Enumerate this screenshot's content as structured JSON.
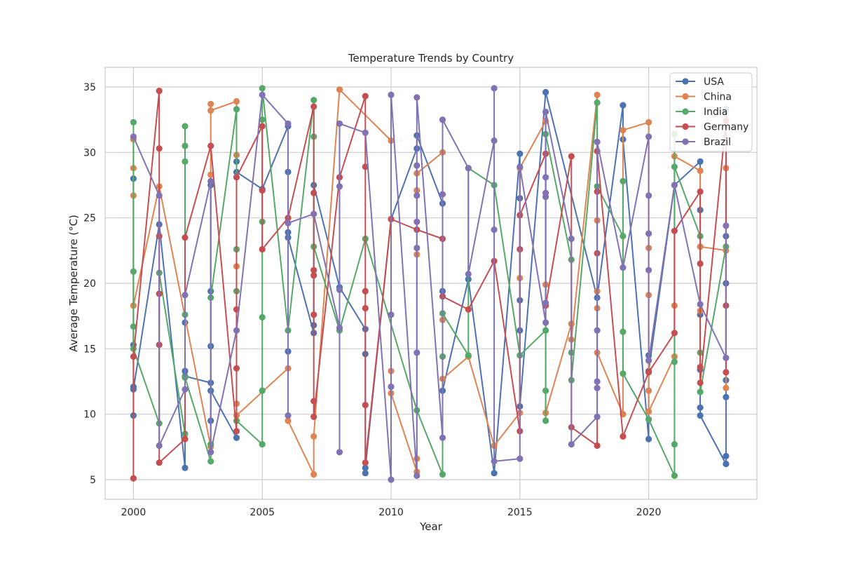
{
  "chart_data": {
    "type": "line",
    "title": "Temperature Trends by Country",
    "xlabel": "Year",
    "ylabel": "Average Temperature (°C)",
    "xlim": [
      1998.9,
      2024.2
    ],
    "ylim": [
      3.5,
      36.5
    ],
    "xticks": [
      2000,
      2005,
      2010,
      2015,
      2020
    ],
    "yticks": [
      5,
      10,
      15,
      20,
      25,
      30,
      35
    ],
    "grid": true,
    "legend_position": "top-right",
    "series": [
      {
        "name": "USA",
        "color": "#4c72b0",
        "points": [
          [
            2000,
            28.0
          ],
          [
            2000,
            15.3
          ],
          [
            2000,
            9.9
          ],
          [
            2000,
            12.1
          ],
          [
            2000,
            11.9
          ],
          [
            2001,
            24.5
          ],
          [
            2002,
            5.9
          ],
          [
            2002,
            13.3
          ],
          [
            2002,
            17.0
          ],
          [
            2002,
            12.9
          ],
          [
            2003,
            12.4
          ],
          [
            2003,
            15.2
          ],
          [
            2003,
            19.4
          ],
          [
            2003,
            27.5
          ],
          [
            2003,
            9.5
          ],
          [
            2003,
            11.8
          ],
          [
            2004,
            8.2
          ],
          [
            2004,
            29.3
          ],
          [
            2004,
            28.5
          ],
          [
            2005,
            27.2
          ],
          [
            2006,
            32.0
          ],
          [
            2006,
            23.9
          ],
          [
            2006,
            28.5
          ],
          [
            2006,
            14.8
          ],
          [
            2006,
            23.5
          ],
          [
            2007,
            16.2
          ],
          [
            2007,
            16.8
          ],
          [
            2007,
            27.5
          ],
          [
            2008,
            19.7
          ],
          [
            2009,
            16.5
          ],
          [
            2009,
            14.6
          ],
          [
            2009,
            5.5
          ],
          [
            2009,
            5.9
          ],
          [
            2010,
            24.9
          ],
          [
            2011,
            30.3
          ],
          [
            2011,
            31.3
          ],
          [
            2012,
            26.1
          ],
          [
            2012,
            19.4
          ],
          [
            2012,
            11.8
          ],
          [
            2013,
            20.3
          ],
          [
            2014,
            5.5
          ],
          [
            2015,
            29.9
          ],
          [
            2015,
            26.5
          ],
          [
            2015,
            18.7
          ],
          [
            2015,
            16.4
          ],
          [
            2015,
            10.6
          ],
          [
            2016,
            34.6
          ],
          [
            2018,
            18.9
          ],
          [
            2019,
            33.6
          ],
          [
            2019,
            31.0
          ],
          [
            2020,
            8.1
          ],
          [
            2020,
            14.5
          ],
          [
            2020,
            13.3
          ],
          [
            2021,
            27.5
          ],
          [
            2022,
            29.3
          ],
          [
            2022,
            25.6
          ],
          [
            2022,
            17.6
          ],
          [
            2022,
            13.4
          ],
          [
            2022,
            10.5
          ],
          [
            2022,
            9.9
          ],
          [
            2023,
            6.2
          ],
          [
            2023,
            6.8
          ],
          [
            2023,
            11.3
          ],
          [
            2023,
            12.6
          ],
          [
            2023,
            20.0
          ],
          [
            2023,
            23.6
          ],
          [
            2023,
            33.3
          ]
        ]
      },
      {
        "name": "China",
        "color": "#dd8452",
        "points": [
          [
            2000,
            31.0
          ],
          [
            2000,
            28.8
          ],
          [
            2000,
            26.7
          ],
          [
            2000,
            18.3
          ],
          [
            2001,
            27.4
          ],
          [
            2003,
            7.5
          ],
          [
            2003,
            28.3
          ],
          [
            2003,
            33.7
          ],
          [
            2003,
            33.2
          ],
          [
            2004,
            33.9
          ],
          [
            2004,
            29.8
          ],
          [
            2004,
            21.3
          ],
          [
            2004,
            10.8
          ],
          [
            2004,
            9.9
          ],
          [
            2006,
            13.5
          ],
          [
            2006,
            9.5
          ],
          [
            2007,
            5.4
          ],
          [
            2007,
            8.3
          ],
          [
            2008,
            34.8
          ],
          [
            2010,
            30.9
          ],
          [
            2010,
            13.3
          ],
          [
            2010,
            11.6
          ],
          [
            2011,
            5.6
          ],
          [
            2011,
            6.6
          ],
          [
            2011,
            22.2
          ],
          [
            2011,
            27.1
          ],
          [
            2011,
            28.4
          ],
          [
            2012,
            30.0
          ],
          [
            2012,
            17.2
          ],
          [
            2012,
            12.7
          ],
          [
            2013,
            14.4
          ],
          [
            2014,
            7.6
          ],
          [
            2015,
            10.1
          ],
          [
            2015,
            20.4
          ],
          [
            2015,
            28.8
          ],
          [
            2016,
            32.4
          ],
          [
            2016,
            19.9
          ],
          [
            2016,
            10.1
          ],
          [
            2017,
            16.9
          ],
          [
            2017,
            16.9
          ],
          [
            2017,
            15.7
          ],
          [
            2018,
            34.4
          ],
          [
            2018,
            24.8
          ],
          [
            2018,
            19.4
          ],
          [
            2018,
            18.1
          ],
          [
            2018,
            14.7
          ],
          [
            2019,
            10.0
          ],
          [
            2019,
            31.7
          ],
          [
            2020,
            32.3
          ],
          [
            2020,
            22.7
          ],
          [
            2020,
            19.1
          ],
          [
            2020,
            11.8
          ],
          [
            2020,
            10.2
          ],
          [
            2021,
            14.4
          ],
          [
            2021,
            18.3
          ],
          [
            2021,
            29.7
          ],
          [
            2022,
            28.6
          ],
          [
            2022,
            17.9
          ],
          [
            2022,
            22.8
          ],
          [
            2023,
            22.5
          ],
          [
            2023,
            28.8
          ],
          [
            2023,
            12.0
          ]
        ]
      },
      {
        "name": "India",
        "color": "#55a868",
        "points": [
          [
            2000,
            32.3
          ],
          [
            2000,
            20.9
          ],
          [
            2000,
            16.7
          ],
          [
            2000,
            15.0
          ],
          [
            2001,
            9.3
          ],
          [
            2001,
            20.8
          ],
          [
            2002,
            8.5
          ],
          [
            2002,
            32.0
          ],
          [
            2002,
            30.5
          ],
          [
            2002,
            29.3
          ],
          [
            2002,
            17.6
          ],
          [
            2002,
            12.8
          ],
          [
            2003,
            6.4
          ],
          [
            2003,
            7.7
          ],
          [
            2003,
            18.9
          ],
          [
            2004,
            33.3
          ],
          [
            2004,
            22.6
          ],
          [
            2004,
            19.4
          ],
          [
            2004,
            9.5
          ],
          [
            2005,
            7.7
          ],
          [
            2005,
            11.8
          ],
          [
            2005,
            17.4
          ],
          [
            2005,
            24.7
          ],
          [
            2005,
            32.5
          ],
          [
            2005,
            34.9
          ],
          [
            2006,
            16.4
          ],
          [
            2007,
            34.0
          ],
          [
            2007,
            31.2
          ],
          [
            2007,
            22.8
          ],
          [
            2008,
            16.4
          ],
          [
            2009,
            23.4
          ],
          [
            2011,
            10.3
          ],
          [
            2012,
            5.4
          ],
          [
            2012,
            14.4
          ],
          [
            2012,
            17.7
          ],
          [
            2013,
            14.5
          ],
          [
            2013,
            28.8
          ],
          [
            2014,
            27.5
          ],
          [
            2015,
            14.5
          ],
          [
            2016,
            16.4
          ],
          [
            2016,
            9.5
          ],
          [
            2016,
            11.8
          ],
          [
            2016,
            31.4
          ],
          [
            2017,
            21.8
          ],
          [
            2017,
            14.7
          ],
          [
            2017,
            12.6
          ],
          [
            2018,
            33.8
          ],
          [
            2018,
            27.4
          ],
          [
            2019,
            23.6
          ],
          [
            2019,
            27.8
          ],
          [
            2019,
            16.3
          ],
          [
            2019,
            13.1
          ],
          [
            2020,
            9.6
          ],
          [
            2021,
            5.3
          ],
          [
            2021,
            7.7
          ],
          [
            2021,
            14.0
          ],
          [
            2021,
            31.4
          ],
          [
            2021,
            28.9
          ],
          [
            2022,
            23.6
          ],
          [
            2022,
            14.7
          ],
          [
            2022,
            11.7
          ],
          [
            2023,
            22.8
          ]
        ]
      },
      {
        "name": "Germany",
        "color": "#c44e52",
        "points": [
          [
            2000,
            5.1
          ],
          [
            2000,
            14.4
          ],
          [
            2001,
            34.7
          ],
          [
            2001,
            30.3
          ],
          [
            2001,
            23.6
          ],
          [
            2001,
            19.2
          ],
          [
            2001,
            15.3
          ],
          [
            2001,
            6.3
          ],
          [
            2002,
            8.1
          ],
          [
            2002,
            23.5
          ],
          [
            2003,
            30.5
          ],
          [
            2004,
            8.7
          ],
          [
            2004,
            13.5
          ],
          [
            2004,
            18.0
          ],
          [
            2004,
            28.1
          ],
          [
            2005,
            32.0
          ],
          [
            2005,
            27.1
          ],
          [
            2005,
            22.6
          ],
          [
            2006,
            25.0
          ],
          [
            2007,
            33.5
          ],
          [
            2007,
            26.9
          ],
          [
            2007,
            21.0
          ],
          [
            2007,
            20.6
          ],
          [
            2007,
            17.6
          ],
          [
            2007,
            11.0
          ],
          [
            2007,
            9.8
          ],
          [
            2008,
            28.1
          ],
          [
            2009,
            34.3
          ],
          [
            2009,
            28.9
          ],
          [
            2009,
            19.4
          ],
          [
            2009,
            18.1
          ],
          [
            2009,
            10.7
          ],
          [
            2009,
            6.3
          ],
          [
            2010,
            24.9
          ],
          [
            2011,
            24.1
          ],
          [
            2012,
            23.4
          ],
          [
            2012,
            19.0
          ],
          [
            2013,
            18.0
          ],
          [
            2014,
            21.7
          ],
          [
            2015,
            8.7
          ],
          [
            2015,
            22.6
          ],
          [
            2015,
            25.2
          ],
          [
            2016,
            29.9
          ],
          [
            2016,
            18.3
          ],
          [
            2017,
            29.7
          ],
          [
            2017,
            9.0
          ],
          [
            2018,
            7.6
          ],
          [
            2018,
            22.3
          ],
          [
            2018,
            27.0
          ],
          [
            2018,
            30.1
          ],
          [
            2019,
            8.3
          ],
          [
            2020,
            13.2
          ],
          [
            2021,
            16.2
          ],
          [
            2021,
            24.0
          ],
          [
            2022,
            27.0
          ],
          [
            2022,
            21.5
          ],
          [
            2022,
            13.6
          ],
          [
            2022,
            12.4
          ],
          [
            2023,
            32.4
          ],
          [
            2023,
            18.3
          ],
          [
            2023,
            13.2
          ]
        ]
      },
      {
        "name": "Brazil",
        "color": "#8172b3",
        "points": [
          [
            2000,
            31.2
          ],
          [
            2001,
            26.7
          ],
          [
            2001,
            7.6
          ],
          [
            2002,
            11.9
          ],
          [
            2002,
            19.1
          ],
          [
            2003,
            27.8
          ],
          [
            2003,
            7.1
          ],
          [
            2004,
            16.4
          ],
          [
            2005,
            34.4
          ],
          [
            2006,
            32.2
          ],
          [
            2006,
            9.9
          ],
          [
            2006,
            24.6
          ],
          [
            2007,
            25.3
          ],
          [
            2008,
            16.6
          ],
          [
            2008,
            7.1
          ],
          [
            2008,
            19.5
          ],
          [
            2008,
            27.4
          ],
          [
            2008,
            32.2
          ],
          [
            2009,
            31.5
          ],
          [
            2010,
            5.0
          ],
          [
            2010,
            12.1
          ],
          [
            2010,
            17.6
          ],
          [
            2010,
            34.4
          ],
          [
            2011,
            5.3
          ],
          [
            2011,
            14.7
          ],
          [
            2011,
            22.7
          ],
          [
            2011,
            24.7
          ],
          [
            2011,
            26.7
          ],
          [
            2011,
            29.0
          ],
          [
            2011,
            34.2
          ],
          [
            2012,
            8.2
          ],
          [
            2012,
            26.8
          ],
          [
            2012,
            32.5
          ],
          [
            2013,
            28.8
          ],
          [
            2013,
            20.7
          ],
          [
            2014,
            30.9
          ],
          [
            2014,
            34.9
          ],
          [
            2014,
            24.1
          ],
          [
            2014,
            6.4
          ],
          [
            2015,
            6.6
          ],
          [
            2015,
            28.9
          ],
          [
            2016,
            17.0
          ],
          [
            2016,
            18.5
          ],
          [
            2016,
            26.6
          ],
          [
            2016,
            26.9
          ],
          [
            2016,
            28.1
          ],
          [
            2016,
            33.1
          ],
          [
            2017,
            23.4
          ],
          [
            2017,
            7.7
          ],
          [
            2018,
            9.8
          ],
          [
            2018,
            12.0
          ],
          [
            2018,
            12.5
          ],
          [
            2018,
            16.4
          ],
          [
            2018,
            30.8
          ],
          [
            2019,
            21.2
          ],
          [
            2020,
            31.2
          ],
          [
            2020,
            26.7
          ],
          [
            2020,
            23.8
          ],
          [
            2020,
            21.0
          ],
          [
            2020,
            14.1
          ],
          [
            2021,
            27.5
          ],
          [
            2022,
            18.4
          ],
          [
            2023,
            14.3
          ],
          [
            2023,
            24.4
          ]
        ]
      }
    ]
  }
}
